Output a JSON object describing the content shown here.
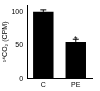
{
  "chart_data": {
    "type": "bar",
    "y_label": "¹⁴CO₂ (CPM)",
    "categories": [
      "C",
      "PE"
    ],
    "values": [
      100,
      55
    ],
    "errors": [
      3,
      4
    ],
    "color": "#000000",
    "ylim": [
      0,
      110
    ],
    "yticks": [
      0,
      50,
      100
    ],
    "grid": false,
    "annotations": [
      {
        "text": "*",
        "category": "PE"
      }
    ]
  }
}
